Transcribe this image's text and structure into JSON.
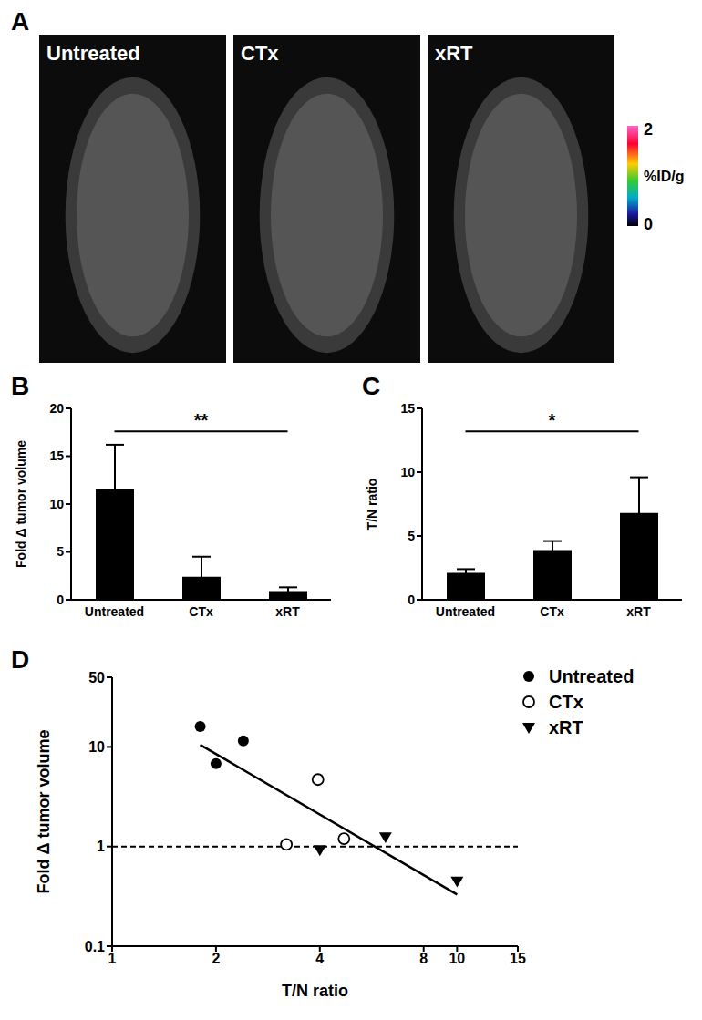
{
  "chart_data": [
    {
      "type": "image_panel",
      "panel": "A",
      "images": [
        "Untreated",
        "CTx",
        "xRT"
      ],
      "colorbar": {
        "range": [
          0,
          2
        ],
        "ticks": [
          0,
          2
        ],
        "label": "%ID/g"
      }
    },
    {
      "type": "bar",
      "panel": "B",
      "categories": [
        "Untreated",
        "CTx",
        "xRT"
      ],
      "values": [
        11.6,
        2.4,
        0.9
      ],
      "errors": [
        4.6,
        2.1,
        0.4
      ],
      "ylabel": "Fold Δ tumor volume",
      "ylim": [
        0,
        20
      ],
      "yticks": [
        0,
        5,
        10,
        15,
        20
      ],
      "color": "#000000",
      "significance": {
        "from": "Untreated",
        "to": "xRT",
        "label": "**"
      }
    },
    {
      "type": "bar",
      "panel": "C",
      "categories": [
        "Untreated",
        "CTx",
        "xRT"
      ],
      "values": [
        2.1,
        3.9,
        6.8
      ],
      "errors": [
        0.3,
        0.7,
        2.8
      ],
      "ylabel": "T/N ratio",
      "ylim": [
        0,
        15
      ],
      "yticks": [
        0,
        5,
        10,
        15
      ],
      "color": "#000000",
      "significance": {
        "from": "Untreated",
        "to": "xRT",
        "label": "*"
      }
    },
    {
      "type": "scatter",
      "panel": "D",
      "xlabel": "T/N ratio",
      "ylabel": "Fold Δ tumor volume",
      "log": true,
      "xlim": [
        1,
        15
      ],
      "xticks": [
        1,
        2,
        4,
        8,
        10,
        15
      ],
      "ylim": [
        0.1,
        50
      ],
      "yticks": [
        0.1,
        1,
        10,
        50
      ],
      "legend": "top-right",
      "series": [
        {
          "name": "Untreated",
          "color": "#000000",
          "marker": "circle",
          "x": [
            1.8,
            2.0,
            2.4
          ],
          "values": [
            16,
            6.8,
            11.5
          ]
        },
        {
          "name": "CTx",
          "color": "#000000",
          "marker": "open_circle",
          "x": [
            3.2,
            3.95,
            4.7
          ],
          "values": [
            1.05,
            4.7,
            1.2
          ]
        },
        {
          "name": "xRT",
          "color": "#000000",
          "marker": "triangle_down",
          "x": [
            4.0,
            6.2,
            10
          ],
          "values": [
            0.93,
            1.25,
            0.45
          ]
        }
      ],
      "fit_line": {
        "x": [
          1.8,
          10
        ],
        "y": [
          10.5,
          0.33
        ]
      },
      "reference_line": 1
    }
  ]
}
